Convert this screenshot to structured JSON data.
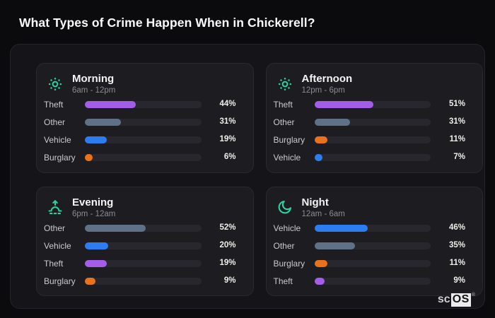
{
  "page": {
    "title": "What Types of Crime Happen When in Chickerell?"
  },
  "brand": {
    "prefix": "sc",
    "suffix": "OS",
    "registered": "®"
  },
  "unit": "%",
  "colors": {
    "background": "#0b0b0e",
    "panel": "#141419",
    "card": "#1c1c21",
    "track": "#27272d",
    "icon_accent": "#2bd3a3",
    "categories": {
      "Theft": "#a35de8",
      "Other": "#5f7187",
      "Vehicle": "#2e7df0",
      "Burglary": "#e8731c"
    }
  },
  "chart_data": [
    {
      "type": "bar",
      "orientation": "horizontal",
      "icon": "sun-icon",
      "title": "Morning",
      "subtitle": "6am - 12pm",
      "unit": "%",
      "xlim": [
        0,
        100
      ],
      "categories": [
        "Theft",
        "Other",
        "Vehicle",
        "Burglary"
      ],
      "values": [
        44,
        31,
        19,
        6
      ]
    },
    {
      "type": "bar",
      "orientation": "horizontal",
      "icon": "sun-icon",
      "title": "Afternoon",
      "subtitle": "12pm - 6pm",
      "unit": "%",
      "xlim": [
        0,
        100
      ],
      "categories": [
        "Theft",
        "Other",
        "Burglary",
        "Vehicle"
      ],
      "values": [
        51,
        31,
        11,
        7
      ]
    },
    {
      "type": "bar",
      "orientation": "horizontal",
      "icon": "sunrise-icon",
      "title": "Evening",
      "subtitle": "6pm - 12am",
      "unit": "%",
      "xlim": [
        0,
        100
      ],
      "categories": [
        "Other",
        "Vehicle",
        "Theft",
        "Burglary"
      ],
      "values": [
        52,
        20,
        19,
        9
      ]
    },
    {
      "type": "bar",
      "orientation": "horizontal",
      "icon": "moon-icon",
      "title": "Night",
      "subtitle": "12am - 6am",
      "unit": "%",
      "xlim": [
        0,
        100
      ],
      "categories": [
        "Vehicle",
        "Other",
        "Burglary",
        "Theft"
      ],
      "values": [
        46,
        35,
        11,
        9
      ]
    }
  ]
}
